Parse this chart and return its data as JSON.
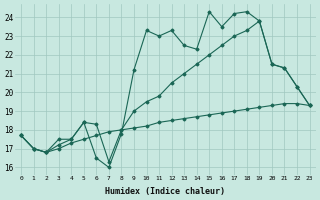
{
  "xlabel": "Humidex (Indice chaleur)",
  "background_color": "#c8e8e0",
  "grid_color": "#a0c8c0",
  "line_color": "#1a6655",
  "xlim": [
    -0.5,
    23.5
  ],
  "ylim": [
    15.6,
    24.7
  ],
  "yticks": [
    16,
    17,
    18,
    19,
    20,
    21,
    22,
    23,
    24
  ],
  "xticks": [
    0,
    1,
    2,
    3,
    4,
    5,
    6,
    7,
    8,
    9,
    10,
    11,
    12,
    13,
    14,
    15,
    16,
    17,
    18,
    19,
    20,
    21,
    22,
    23
  ],
  "line1_x": [
    0,
    1,
    2,
    3,
    4,
    5,
    6,
    7,
    8,
    9,
    10,
    11,
    12,
    13,
    14,
    15,
    16,
    17,
    18,
    19,
    20,
    21,
    22,
    23
  ],
  "line1_y": [
    17.7,
    17.0,
    16.8,
    17.5,
    17.5,
    18.4,
    16.5,
    16.0,
    17.8,
    21.2,
    23.3,
    23.0,
    23.3,
    22.5,
    22.3,
    24.3,
    23.5,
    24.2,
    24.3,
    23.8,
    21.5,
    21.3,
    20.3,
    19.3
  ],
  "line2_x": [
    0,
    1,
    2,
    3,
    4,
    5,
    6,
    7,
    8,
    9,
    10,
    11,
    12,
    13,
    14,
    15,
    16,
    17,
    18,
    19,
    20,
    21,
    22,
    23
  ],
  "line2_y": [
    17.7,
    17.0,
    16.8,
    17.2,
    17.5,
    18.4,
    18.3,
    16.3,
    18.0,
    19.0,
    19.5,
    19.8,
    20.5,
    21.0,
    21.5,
    22.0,
    22.5,
    23.0,
    23.3,
    23.8,
    21.5,
    21.3,
    20.3,
    19.3
  ],
  "line3_x": [
    0,
    1,
    2,
    3,
    4,
    5,
    6,
    7,
    8,
    9,
    10,
    11,
    12,
    13,
    14,
    15,
    16,
    17,
    18,
    19,
    20,
    21,
    22,
    23
  ],
  "line3_y": [
    17.7,
    17.0,
    16.8,
    17.0,
    17.3,
    17.5,
    17.7,
    17.9,
    18.0,
    18.1,
    18.2,
    18.4,
    18.5,
    18.6,
    18.7,
    18.8,
    18.9,
    19.0,
    19.1,
    19.2,
    19.3,
    19.4,
    19.4,
    19.3
  ]
}
